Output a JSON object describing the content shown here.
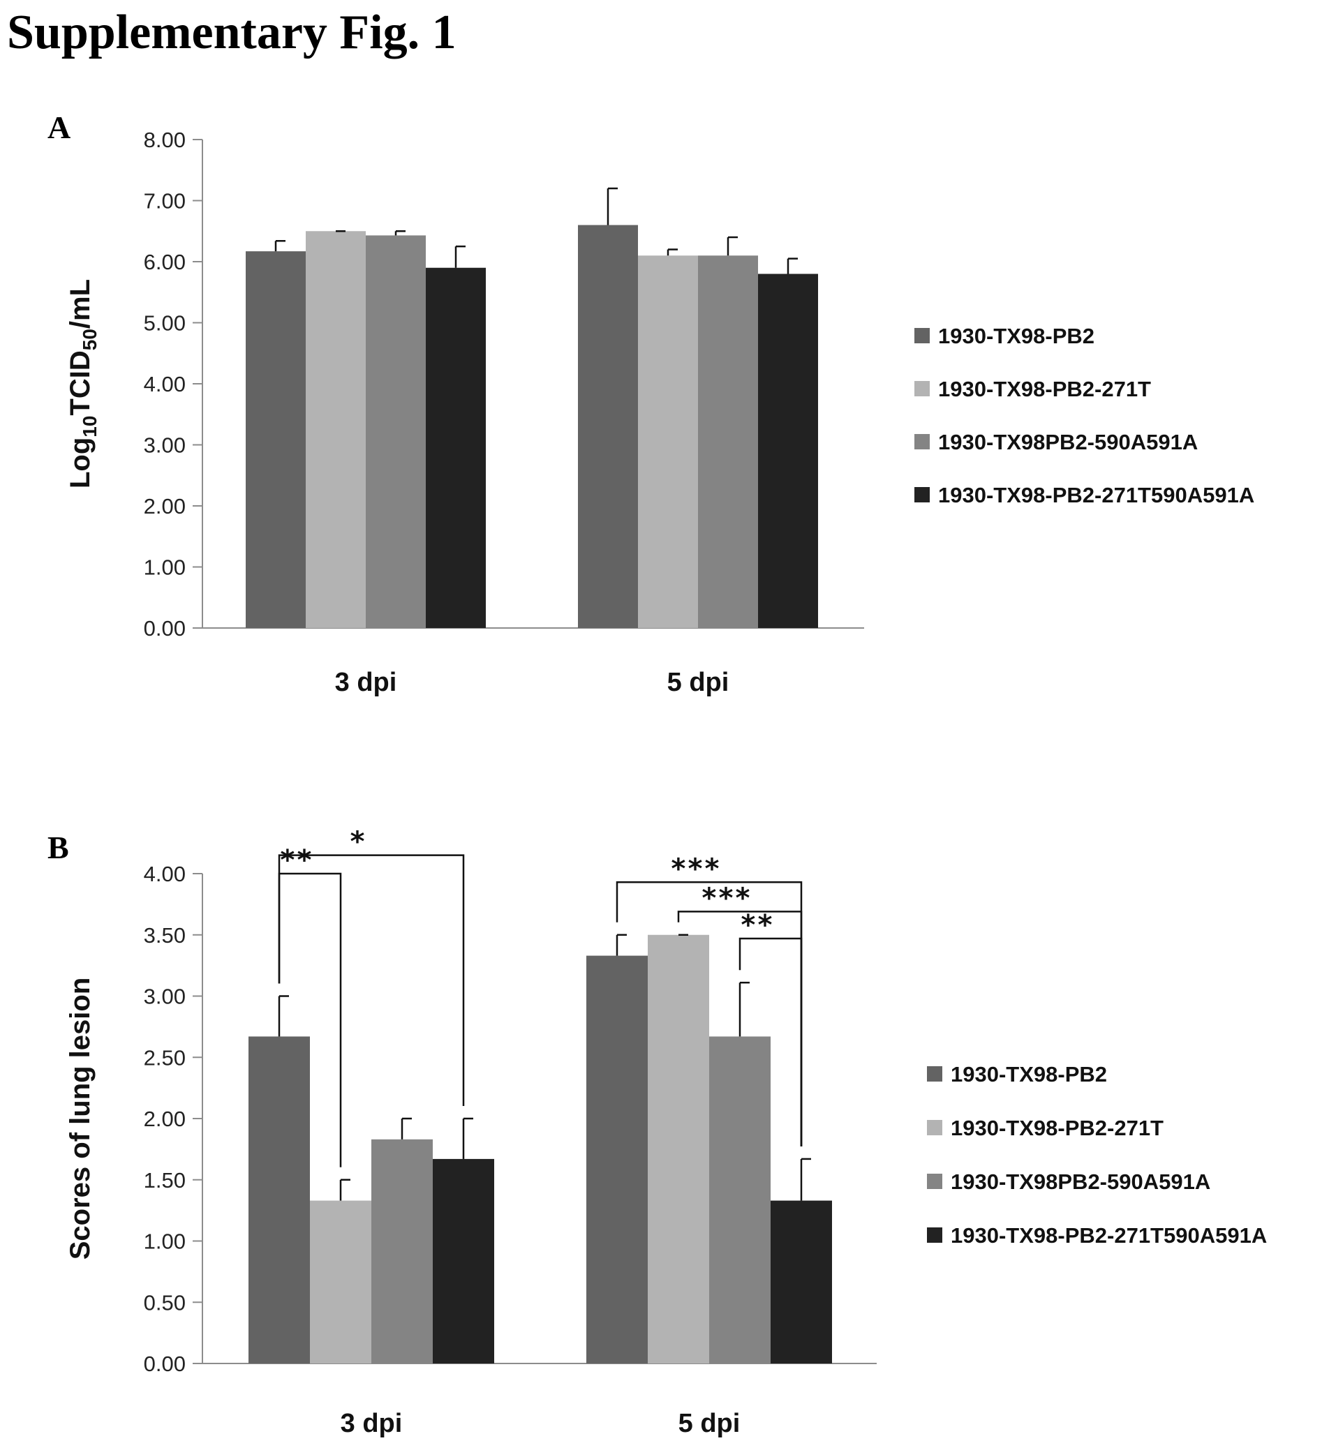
{
  "figure_title": "Supplementary Fig. 1",
  "colors": {
    "series": [
      "#636363",
      "#b3b3b3",
      "#848484",
      "#222222"
    ],
    "axis": "#8c8c8c",
    "text": "#111111"
  },
  "chart_data": [
    {
      "panel": "A",
      "type": "bar",
      "title": "",
      "ylabel_main": "Log",
      "ylabel_sub1": "10",
      "ylabel_mid": "TCID",
      "ylabel_sub2": "50",
      "ylabel_end": "/mL",
      "xlabel": "",
      "ylim": [
        0,
        8
      ],
      "y_ticks": [
        "0.00",
        "1.00",
        "2.00",
        "3.00",
        "4.00",
        "5.00",
        "6.00",
        "7.00",
        "8.00"
      ],
      "categories": [
        "3 dpi",
        "5 dpi"
      ],
      "series": [
        {
          "name": "1930-TX98-PB2",
          "values": [
            6.17,
            6.6
          ],
          "errors": [
            0.17,
            0.6
          ]
        },
        {
          "name": "1930-TX98-PB2-271T",
          "values": [
            6.5,
            6.1
          ],
          "errors": [
            0.0,
            0.1
          ]
        },
        {
          "name": "1930-TX98PB2-590A591A",
          "values": [
            6.43,
            6.1
          ],
          "errors": [
            0.07,
            0.3
          ]
        },
        {
          "name": "1930-TX98-PB2-271T590A591A",
          "values": [
            5.9,
            5.8
          ],
          "errors": [
            0.35,
            0.25
          ]
        }
      ],
      "significance": [],
      "legend_position": "right"
    },
    {
      "panel": "B",
      "type": "bar",
      "title": "",
      "ylabel": "Scores of lung lesion",
      "xlabel": "",
      "ylim": [
        0,
        4
      ],
      "y_ticks": [
        "0.00",
        "0.50",
        "1.00",
        "1.50",
        "2.00",
        "2.50",
        "3.00",
        "3.50",
        "4.00"
      ],
      "categories": [
        "3 dpi",
        "5 dpi"
      ],
      "series": [
        {
          "name": "1930-TX98-PB2",
          "values": [
            2.67,
            3.33
          ],
          "errors": [
            0.33,
            0.17
          ]
        },
        {
          "name": "1930-TX98-PB2-271T",
          "values": [
            1.33,
            3.5
          ],
          "errors": [
            0.17,
            0.0
          ]
        },
        {
          "name": "1930-TX98PB2-590A591A",
          "values": [
            1.83,
            2.67
          ],
          "errors": [
            0.17,
            0.44
          ]
        },
        {
          "name": "1930-TX98-PB2-271T590A591A",
          "values": [
            1.67,
            1.33
          ],
          "errors": [
            0.33,
            0.34
          ]
        }
      ],
      "significance": [
        {
          "category": 0,
          "from_series": 0,
          "to_series": 1,
          "label": "**",
          "bracket_y": 4.0
        },
        {
          "category": 0,
          "from_series": 0,
          "to_series": 3,
          "label": "*",
          "bracket_y": 4.15
        },
        {
          "category": 1,
          "from_series": 0,
          "to_series": 3,
          "label": "***",
          "bracket_y": 3.93
        },
        {
          "category": 1,
          "from_series": 1,
          "to_series": 3,
          "label": "***",
          "bracket_y": 3.69
        },
        {
          "category": 1,
          "from_series": 2,
          "to_series": 3,
          "label": "**",
          "bracket_y": 3.47
        }
      ],
      "legend_position": "right"
    }
  ]
}
